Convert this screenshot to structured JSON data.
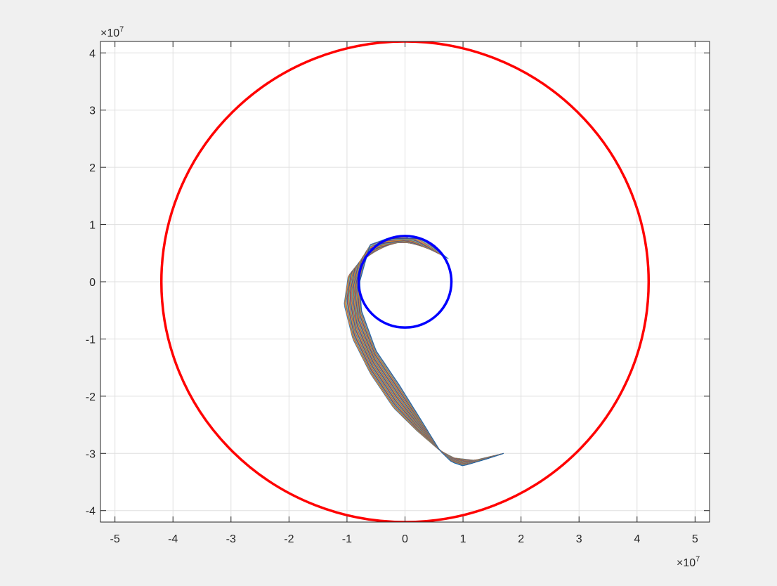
{
  "figure": {
    "background": "#f0f0f0",
    "axes_background": "#ffffff"
  },
  "chart_data": {
    "type": "line",
    "title": "",
    "xlabel": "",
    "ylabel": "",
    "xlim": [
      -52500000.0,
      52500000.0
    ],
    "ylim": [
      -42000000.0,
      42000000.0
    ],
    "grid": true,
    "x_exponent_label": {
      "base": "×10",
      "exp": "7"
    },
    "y_exponent_label": {
      "base": "×10",
      "exp": "7"
    },
    "x_ticks": [
      -50000000.0,
      -40000000.0,
      -30000000.0,
      -20000000.0,
      -10000000.0,
      0,
      10000000.0,
      20000000.0,
      30000000.0,
      40000000.0,
      50000000.0
    ],
    "x_tick_labels": [
      "-5",
      "-4",
      "-3",
      "-2",
      "-1",
      "0",
      "1",
      "2",
      "3",
      "4",
      "5"
    ],
    "y_ticks": [
      -40000000.0,
      -30000000.0,
      -20000000.0,
      -10000000.0,
      0,
      10000000.0,
      20000000.0,
      30000000.0,
      40000000.0
    ],
    "y_tick_labels": [
      "-4",
      "-3",
      "-2",
      "-1",
      "0",
      "1",
      "2",
      "3",
      "4"
    ],
    "circles": [
      {
        "name": "",
        "cx": 0,
        "cy": 0,
        "r": 42000000.0,
        "color": "#ff0000"
      },
      {
        "name": "",
        "cx": 0,
        "cy": 0,
        "r": 8000000.0,
        "color": "#0000ff"
      }
    ],
    "trajectory_band": {
      "upper": [
        [
          0,
          8000000.0
        ],
        [
          -3000000.0,
          7400000.0
        ],
        [
          -6500000.0,
          5200000.0
        ],
        [
          -9800000.0,
          1000000.0
        ],
        [
          -10500000.0,
          -4000000.0
        ],
        [
          -9000000.0,
          -10000000.0
        ],
        [
          -6000000.0,
          -16000000.0
        ],
        [
          -2000000.0,
          -22000000.0
        ],
        [
          2000000.0,
          -26000000.0
        ],
        [
          6000000.0,
          -29500000.0
        ],
        [
          8500000.0,
          -30800000.0
        ],
        [
          12000000.0,
          -31200000.0
        ],
        [
          17000000.0,
          -30000000.0
        ]
      ],
      "lower": [
        [
          7500000.0,
          4000000.0
        ],
        [
          3000000.0,
          7600000.0
        ],
        [
          -3000000.0,
          7600000.0
        ],
        [
          -6000000.0,
          6500000.0
        ],
        [
          -7800000.0,
          0
        ],
        [
          -7500000.0,
          -5000000.0
        ],
        [
          -5000000.0,
          -12000000.0
        ],
        [
          -1000000.0,
          -18000000.0
        ],
        [
          3000000.0,
          -24500000.0
        ],
        [
          6000000.0,
          -29500000.0
        ],
        [
          8000000.0,
          -31500000.0
        ],
        [
          10000000.0,
          -32200000.0
        ],
        [
          14000000.0,
          -31000000.0
        ],
        [
          17000000.0,
          -30000000.0
        ]
      ],
      "palette": [
        "#0072bd",
        "#d95319",
        "#edb120",
        "#7e2f8e",
        "#77ac30",
        "#4dbeee",
        "#a2142f"
      ]
    }
  }
}
